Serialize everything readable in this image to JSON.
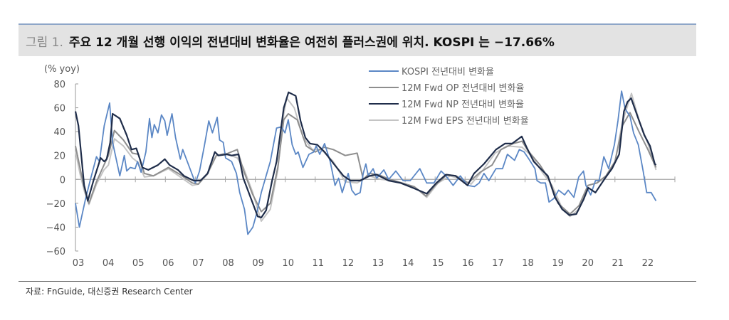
{
  "figure": {
    "label": "그림 1.",
    "title": "주요 12 개월 선행 이익의 전년대비 변화율은 여전히 플러스권에 위치. KOSPI 는 −17.66%",
    "source": "자료: FnGuide, 대신증권 Research Center"
  },
  "chart_data": {
    "type": "line",
    "title": "주요 12 개월 선행 이익의 전년대비 변화율은 여전히 플러스권에 위치. KOSPI 는 −17.66%",
    "ylabel": "(% yoy)",
    "xlabel": "",
    "ylim": [
      -60,
      80
    ],
    "xlim": [
      2003,
      2023
    ],
    "yticks": [
      80,
      60,
      40,
      20,
      0,
      -20,
      -40,
      -60
    ],
    "yticklabels": [
      "80",
      "60",
      "40",
      "20",
      "0",
      "−20",
      "−40",
      "−60"
    ],
    "xticklabels": [
      "03",
      "04",
      "05",
      "06",
      "07",
      "08",
      "09",
      "10",
      "11",
      "12",
      "13",
      "14",
      "15",
      "16",
      "17",
      "18",
      "19",
      "20",
      "21",
      "22"
    ],
    "legend_position": "top-center",
    "grid": false,
    "series": [
      {
        "name": "KOSPI 전년대비 변화율",
        "color": "#5b87c5",
        "x": [
          2003.0,
          2003.13,
          2003.33,
          2003.49,
          2003.7,
          2003.8,
          2003.96,
          2004.14,
          2004.24,
          2004.48,
          2004.63,
          2004.71,
          2004.83,
          2004.99,
          2005.07,
          2005.19,
          2005.35,
          2005.47,
          2005.55,
          2005.63,
          2005.75,
          2005.87,
          2005.98,
          2006.06,
          2006.22,
          2006.34,
          2006.5,
          2006.58,
          2006.7,
          2006.94,
          2007.0,
          2007.14,
          2007.3,
          2007.45,
          2007.57,
          2007.73,
          2007.81,
          2007.93,
          2008.01,
          2008.21,
          2008.37,
          2008.48,
          2008.64,
          2008.75,
          2008.92,
          2009.04,
          2009.2,
          2009.36,
          2009.5,
          2009.71,
          2009.87,
          2009.99,
          2010.1,
          2010.23,
          2010.35,
          2010.43,
          2010.59,
          2010.79,
          2010.95,
          2011.03,
          2011.15,
          2011.31,
          2011.5,
          2011.66,
          2011.78,
          2011.9,
          2012.1,
          2012.22,
          2012.34,
          2012.5,
          2012.6,
          2012.69,
          2012.77,
          2012.93,
          2013.05,
          2013.29,
          2013.45,
          2013.69,
          2013.93,
          2014.17,
          2014.49,
          2014.72,
          2014.96,
          2015.2,
          2015.36,
          2015.6,
          2015.84,
          2016.08,
          2016.31,
          2016.47,
          2016.63,
          2016.79,
          2017.03,
          2017.25,
          2017.41,
          2017.65,
          2017.81,
          2017.97,
          2018.13,
          2018.33,
          2018.4,
          2018.52,
          2018.68,
          2018.8,
          2018.96,
          2019.12,
          2019.32,
          2019.44,
          2019.63,
          2019.79,
          2019.95,
          2020.03,
          2020.19,
          2020.35,
          2020.47,
          2020.63,
          2020.79,
          2020.98,
          2021.1,
          2021.22,
          2021.34,
          2021.5,
          2021.62,
          2021.78,
          2021.94,
          2022.06,
          2022.21,
          2022.37
        ],
        "values": [
          -20,
          -40,
          -17,
          -1,
          19,
          15,
          45,
          64,
          31,
          3,
          20,
          7,
          10,
          9,
          15,
          6,
          23,
          51,
          35,
          46,
          39,
          54,
          49,
          37,
          55,
          35,
          17,
          25,
          17,
          1,
          -3,
          7,
          28,
          49,
          39,
          52,
          33,
          31,
          18,
          15,
          5,
          -11,
          -25,
          -46,
          -40,
          -29,
          -11,
          3,
          15,
          43,
          44,
          39,
          50,
          29,
          21,
          23,
          10,
          21,
          23,
          28,
          21,
          30,
          15,
          -5,
          1,
          -11,
          5,
          -9,
          -13,
          -11,
          5,
          13,
          3,
          9,
          1,
          8,
          0,
          7,
          -1,
          -1,
          9,
          -3,
          -3,
          7,
          3,
          -5,
          3,
          -5,
          -6,
          -3,
          5,
          -1,
          9,
          9,
          21,
          16,
          25,
          23,
          17,
          9,
          -1,
          -3,
          -3,
          -19,
          -16,
          -9,
          -13,
          -9,
          -15,
          2,
          7,
          -5,
          -13,
          -1,
          -1,
          19,
          9,
          29,
          49,
          74,
          59,
          53,
          39,
          29,
          7,
          -11,
          -11,
          -18
        ]
      },
      {
        "name": "12M Fwd OP 전년대비 변화율",
        "color": "#8e8e8e",
        "x": [
          2003.0,
          2003.15,
          2003.3,
          2003.45,
          2003.7,
          2003.95,
          2004.1,
          2004.3,
          2004.6,
          2004.9,
          2005.1,
          2005.3,
          2005.6,
          2006.1,
          2006.5,
          2006.9,
          2007.1,
          2007.4,
          2007.7,
          2008.0,
          2008.4,
          2008.6,
          2008.9,
          2009.2,
          2009.5,
          2009.75,
          2009.95,
          2010.1,
          2010.4,
          2010.7,
          2011.0,
          2011.3,
          2011.6,
          2012.0,
          2012.4,
          2012.6,
          2012.8,
          2013.1,
          2013.5,
          2013.9,
          2014.3,
          2014.7,
          2015.0,
          2015.4,
          2015.7,
          2016.1,
          2016.5,
          2016.9,
          2017.2,
          2017.6,
          2017.9,
          2018.1,
          2018.5,
          2018.8,
          2019.1,
          2019.5,
          2019.8,
          2020.1,
          2020.4,
          2020.7,
          2021.0,
          2021.25,
          2021.5,
          2021.8,
          2022.1,
          2022.37
        ],
        "values": [
          28,
          10,
          -8,
          -20,
          -2,
          12,
          20,
          41,
          33,
          22,
          21,
          5,
          3,
          10,
          4,
          -3,
          -4,
          5,
          20,
          21,
          25,
          8,
          -12,
          -27,
          -20,
          10,
          50,
          55,
          50,
          28,
          23,
          27,
          25,
          20,
          22,
          0,
          5,
          4,
          0,
          -3,
          -6,
          -14,
          -5,
          4,
          3,
          -3,
          6,
          12,
          25,
          30,
          32,
          24,
          12,
          0,
          -20,
          -29,
          -22,
          -5,
          -3,
          3,
          15,
          45,
          56,
          40,
          25,
          10
        ]
      },
      {
        "name": "12M Fwd NP 전년대비 변화율",
        "color": "#1f2d4a",
        "x": [
          2003.0,
          2003.1,
          2003.29,
          2003.33,
          2003.41,
          2003.6,
          2003.84,
          2003.96,
          2004.04,
          2004.16,
          2004.24,
          2004.48,
          2004.71,
          2004.87,
          2005.03,
          2005.15,
          2005.23,
          2005.43,
          2005.75,
          2005.98,
          2006.14,
          2006.42,
          2006.62,
          2006.94,
          2007.17,
          2007.41,
          2007.65,
          2007.77,
          2008.05,
          2008.21,
          2008.44,
          2008.6,
          2008.84,
          2009.08,
          2009.2,
          2009.36,
          2009.56,
          2009.71,
          2009.95,
          2010.11,
          2010.35,
          2010.51,
          2010.67,
          2010.83,
          2011.07,
          2011.31,
          2011.62,
          2011.94,
          2012.18,
          2012.5,
          2012.82,
          2013.05,
          2013.45,
          2013.85,
          2014.25,
          2014.72,
          2015.04,
          2015.36,
          2015.68,
          2016.08,
          2016.3,
          2016.63,
          2017.03,
          2017.33,
          2017.57,
          2017.89,
          2018.05,
          2018.29,
          2018.52,
          2018.76,
          2019.0,
          2019.24,
          2019.48,
          2019.71,
          2019.95,
          2020.11,
          2020.35,
          2020.67,
          2020.9,
          2021.14,
          2021.3,
          2021.42,
          2021.54,
          2021.78,
          2021.98,
          2022.17,
          2022.33,
          2022.37
        ],
        "values": [
          57,
          45,
          -5,
          -9,
          -18,
          -1,
          18,
          15,
          17,
          31,
          55,
          51,
          37,
          25,
          26,
          17,
          10,
          8,
          12,
          17,
          12,
          8,
          3,
          -1,
          -1,
          5,
          23,
          20,
          21,
          20,
          21,
          1,
          -15,
          -31,
          -32,
          -26,
          -1,
          15,
          60,
          73,
          70,
          49,
          35,
          30,
          29,
          23,
          13,
          3,
          -1,
          -1,
          3,
          4,
          -1,
          -3,
          -7,
          -12,
          -3,
          4,
          3,
          -5,
          5,
          13,
          25,
          30,
          30,
          36,
          27,
          15,
          9,
          3,
          -15,
          -25,
          -30,
          -29,
          -17,
          -7,
          -11,
          1,
          9,
          21,
          57,
          65,
          68,
          51,
          37,
          28,
          13,
          12
        ]
      },
      {
        "name": "12M Fwd EPS 전년대비 변화율",
        "color": "#c4c4c4",
        "x": [
          2003.0,
          2003.15,
          2003.3,
          2003.45,
          2003.7,
          2003.95,
          2004.1,
          2004.3,
          2004.6,
          2004.9,
          2005.1,
          2005.3,
          2005.6,
          2006.1,
          2006.5,
          2006.9,
          2007.1,
          2007.4,
          2007.7,
          2008.0,
          2008.4,
          2008.6,
          2008.9,
          2009.2,
          2009.5,
          2009.75,
          2009.95,
          2010.05,
          2010.3,
          2010.6,
          2010.9,
          2011.2,
          2011.6,
          2012.0,
          2012.4,
          2012.8,
          2013.2,
          2013.6,
          2014.0,
          2014.4,
          2014.72,
          2015.1,
          2015.5,
          2015.9,
          2016.2,
          2016.6,
          2017.0,
          2017.4,
          2017.9,
          2018.2,
          2018.6,
          2018.9,
          2019.2,
          2019.5,
          2019.8,
          2020.1,
          2020.4,
          2020.7,
          2021.0,
          2021.25,
          2021.55,
          2021.8,
          2022.1,
          2022.37
        ],
        "values": [
          24,
          5,
          -10,
          -21,
          -4,
          8,
          12,
          34,
          28,
          18,
          14,
          2,
          3,
          9,
          2,
          -5,
          -4,
          4,
          20,
          22,
          18,
          10,
          -10,
          -35,
          -25,
          8,
          55,
          68,
          60,
          35,
          25,
          25,
          15,
          -2,
          -3,
          3,
          0,
          -1,
          -4,
          -8,
          -15,
          -3,
          3,
          0,
          -4,
          8,
          22,
          28,
          27,
          20,
          5,
          -5,
          -22,
          -31,
          -25,
          -5,
          -3,
          2,
          14,
          48,
          72,
          50,
          30,
          8
        ]
      }
    ]
  }
}
